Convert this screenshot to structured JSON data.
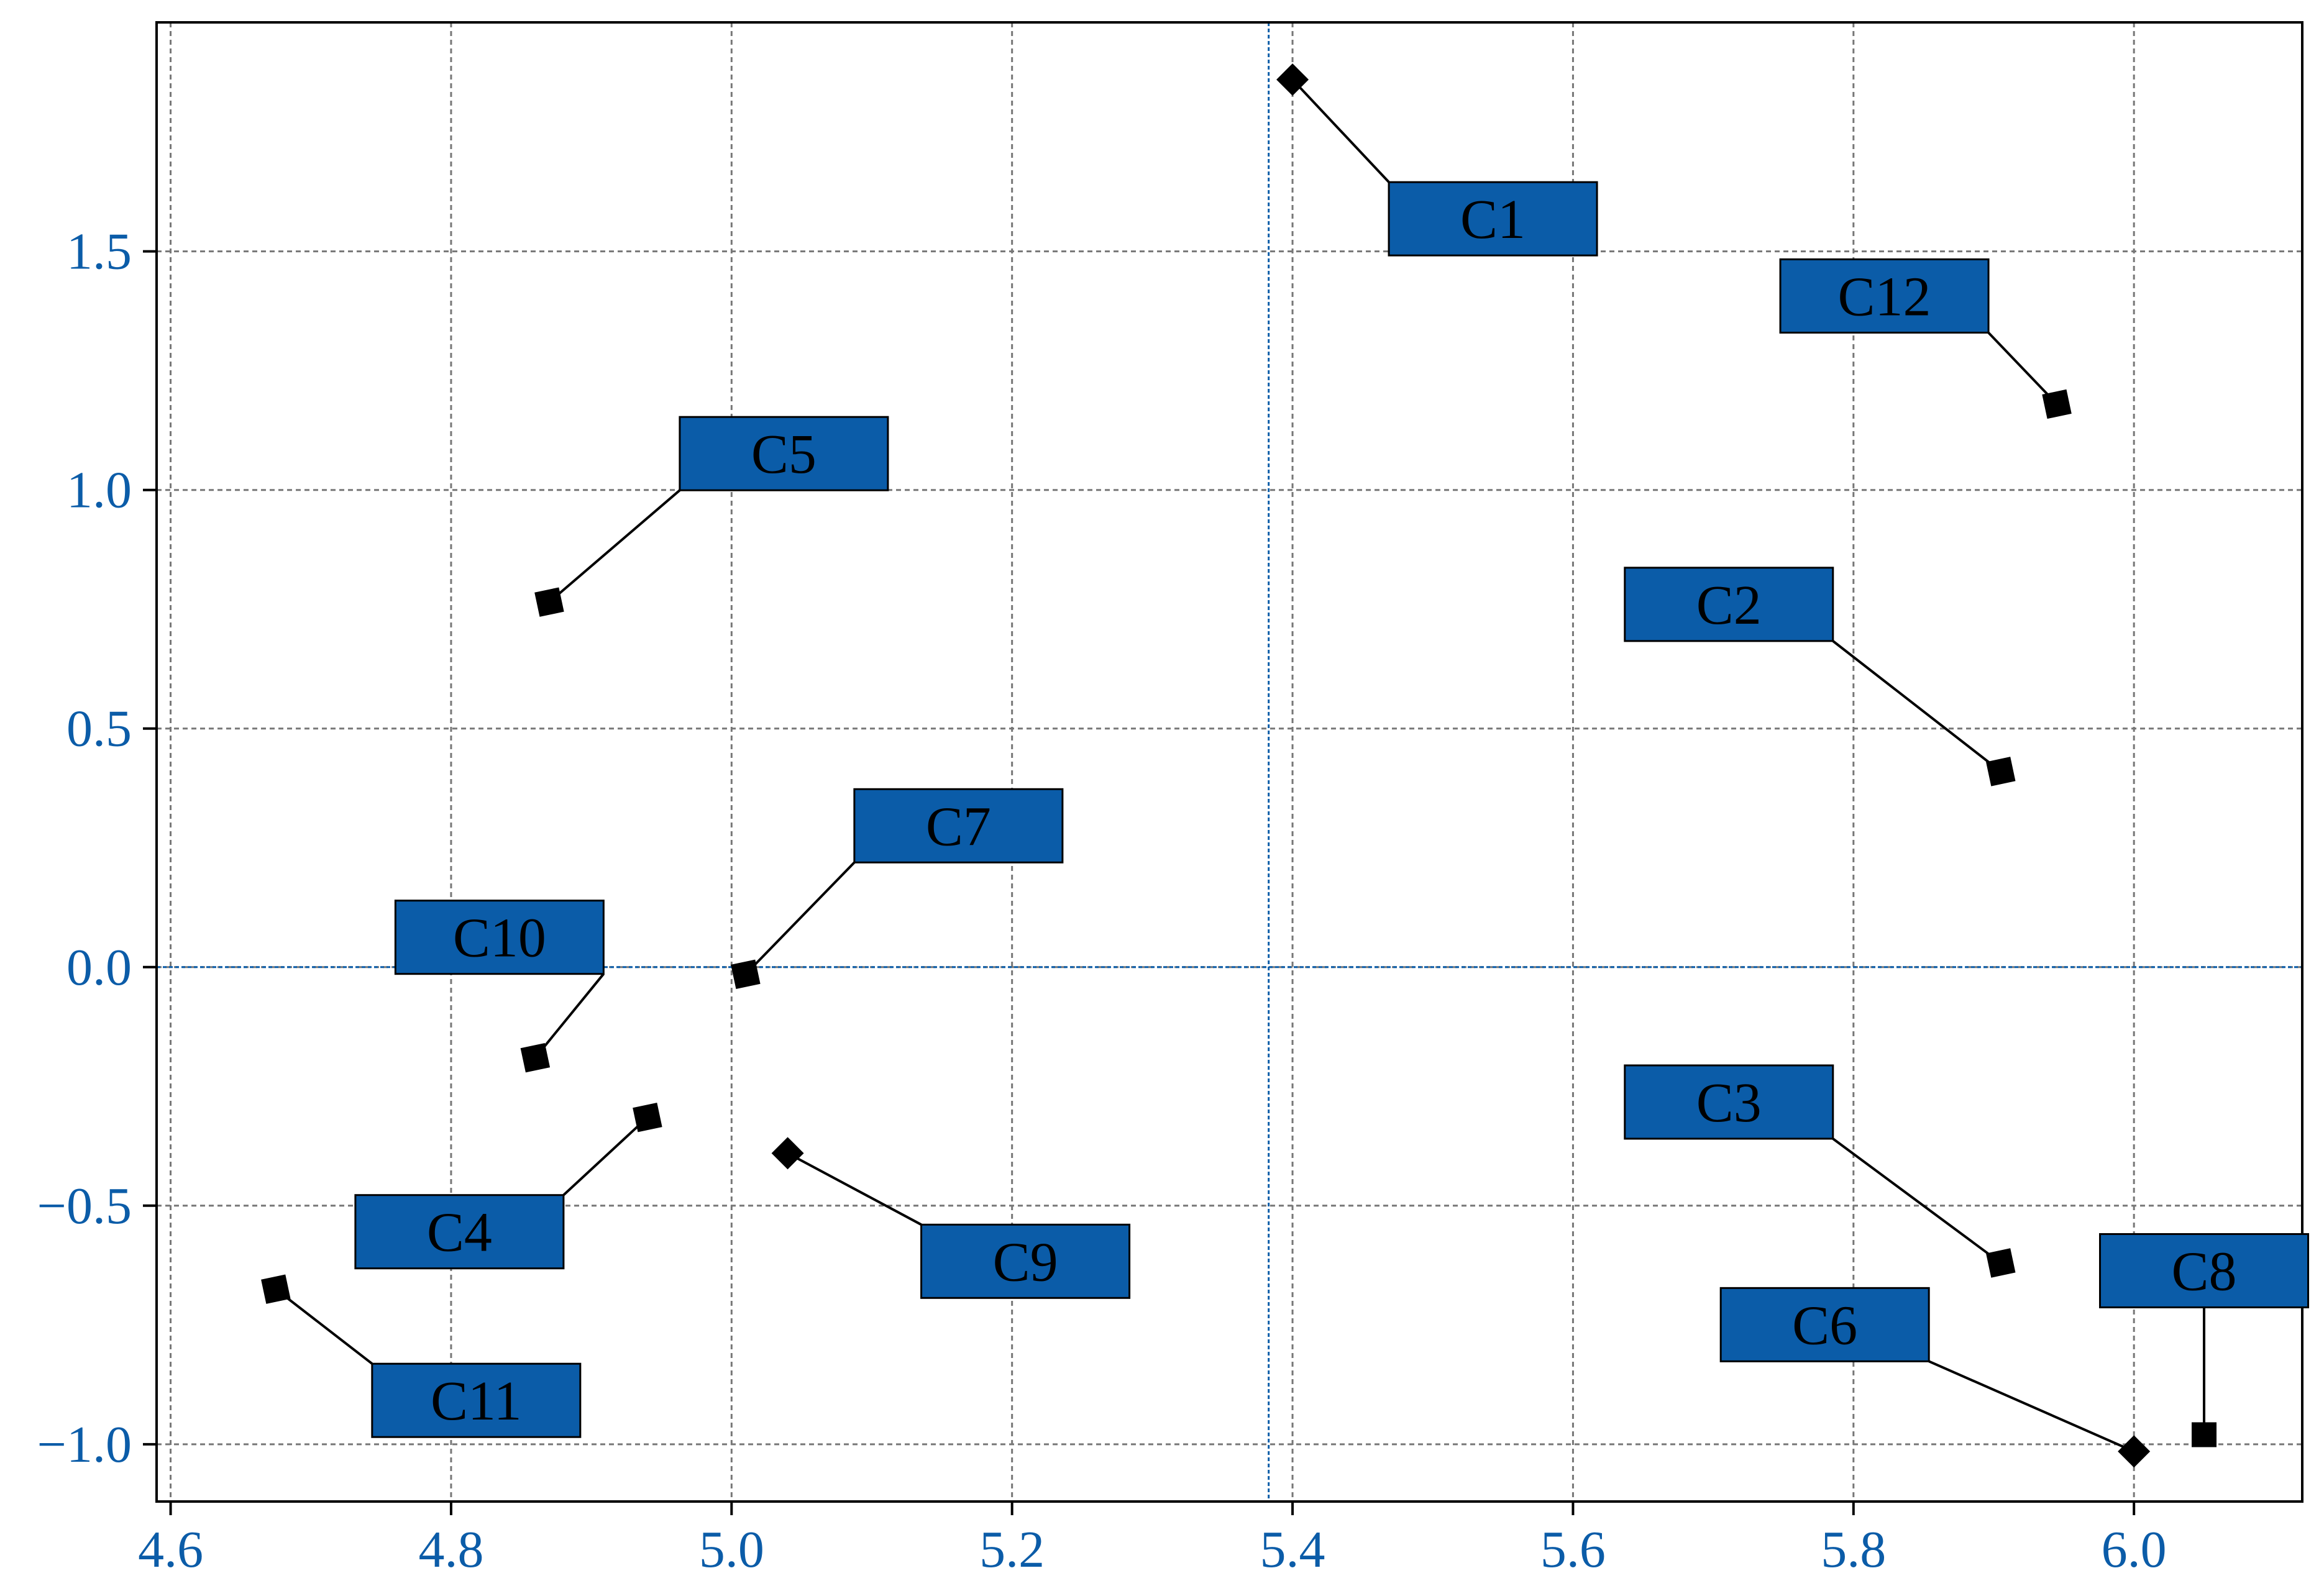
{
  "chart_data": {
    "type": "scatter",
    "title": "",
    "xlabel": "",
    "ylabel": "",
    "xlim": [
      4.59,
      6.12
    ],
    "ylim": [
      -1.12,
      1.98
    ],
    "x_ticks": [
      4.6,
      4.8,
      5.0,
      5.2,
      5.4,
      5.6,
      5.8,
      6.0
    ],
    "x_tick_labels": [
      "4.6",
      "4.8",
      "5.0",
      "5.2",
      "5.4",
      "5.6",
      "5.8",
      "6.0"
    ],
    "y_ticks": [
      -1.0,
      -0.5,
      0.0,
      0.5,
      1.0,
      1.5
    ],
    "y_tick_labels": [
      "−1.0",
      "−0.5",
      "0.0",
      "0.5",
      "1.0",
      "1.5"
    ],
    "grid": true,
    "reference_lines": {
      "x": 5.383,
      "y": 0.0
    },
    "colors": {
      "label_box": "#0b5ca8",
      "tick_text": "#0b5ca8",
      "reference_line": "#0b5ca8",
      "grid": "#777777",
      "marker": "#000000"
    },
    "points": [
      {
        "label": "C1",
        "x": 5.4,
        "y": 1.86,
        "marker": "diamond"
      },
      {
        "label": "C2",
        "x": 5.905,
        "y": 0.41,
        "marker": "square"
      },
      {
        "label": "C3",
        "x": 5.905,
        "y": -0.62,
        "marker": "square"
      },
      {
        "label": "C4",
        "x": 4.94,
        "y": -0.315,
        "marker": "square"
      },
      {
        "label": "C5",
        "x": 4.87,
        "y": 0.765,
        "marker": "square"
      },
      {
        "label": "C6",
        "x": 6.0,
        "y": -1.015,
        "marker": "diamond"
      },
      {
        "label": "C7",
        "x": 5.01,
        "y": -0.015,
        "marker": "square"
      },
      {
        "label": "C8",
        "x": 6.05,
        "y": -0.98,
        "marker": "square"
      },
      {
        "label": "C9",
        "x": 5.04,
        "y": -0.39,
        "marker": "diamond"
      },
      {
        "label": "C10",
        "x": 4.86,
        "y": -0.19,
        "marker": "square"
      },
      {
        "label": "C11",
        "x": 4.675,
        "y": -0.675,
        "marker": "square"
      },
      {
        "label": "C12",
        "x": 5.945,
        "y": 1.18,
        "marker": "square"
      }
    ]
  }
}
